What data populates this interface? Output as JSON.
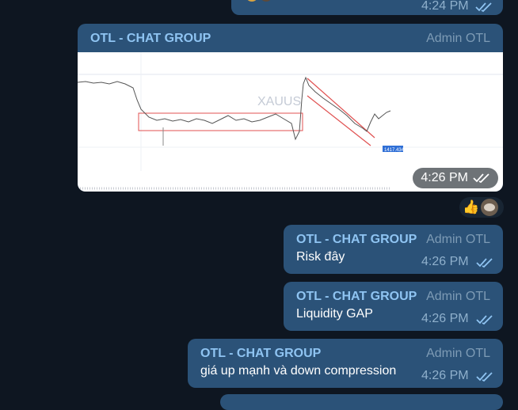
{
  "top_bubble": {
    "time": "4:24 PM"
  },
  "image_post": {
    "group": "OTL - CHAT GROUP",
    "role": "Admin OTL",
    "time": "4:26 PM",
    "chart_watermark": "XAUUS",
    "chart_price_label": "1417.434"
  },
  "reactions": {
    "emoji": "👍"
  },
  "messages": [
    {
      "group": "OTL - CHAT GROUP",
      "role": "Admin OTL",
      "text": "Risk đây",
      "time": "4:26 PM"
    },
    {
      "group": "OTL - CHAT GROUP",
      "role": "Admin OTL",
      "text": "Liquidity GAP",
      "time": "4:26 PM"
    },
    {
      "group": "OTL - CHAT GROUP",
      "role": "Admin OTL",
      "text": "giá up mạnh và down compression",
      "time": "4:26 PM"
    }
  ],
  "colors": {
    "background": "#0e1621",
    "bubble": "#2b5278",
    "accent": "#8fc4f2"
  }
}
